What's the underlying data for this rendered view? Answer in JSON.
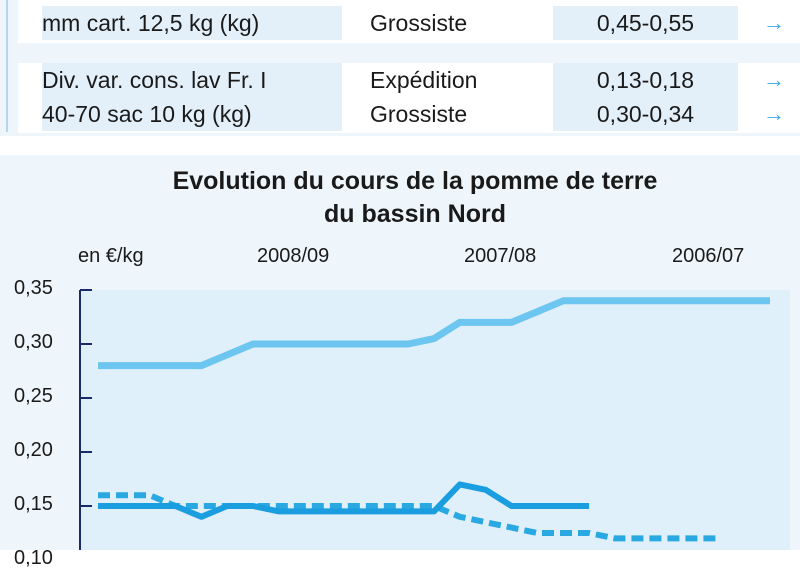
{
  "table": {
    "rows": [
      {
        "product": "mm cart. 12,5 kg (kg)",
        "stage": "Grossiste",
        "price": "0,45-0,55",
        "arrow": "→",
        "arrow_icon": "right-arrow-icon"
      },
      {
        "product": "Div. var. cons. lav Fr. I",
        "stage": "Expédition",
        "price": "0,13-0,18",
        "arrow": "→",
        "arrow_icon": "right-arrow-icon"
      },
      {
        "product": "40-70 sac 10 kg (kg)",
        "stage": "Grossiste",
        "price": "0,30-0,34",
        "arrow": "→",
        "arrow_icon": "right-arrow-icon"
      }
    ]
  },
  "colors": {
    "series_2008_09": "#1a9ee0",
    "series_2007_08": "#2aa8e2",
    "series_2006_07": "#6cc6f0",
    "plot_bg": "#dff0fb",
    "axis": "#1a2a6b",
    "panel_bg": "#eef6fc",
    "arrow": "#39a7e0"
  },
  "chart_data": {
    "type": "line",
    "title": "Evolution du cours de la pomme de terre du bassin Nord",
    "title_lines": [
      "Evolution du cours de la pomme de terre",
      "du bassin Nord"
    ],
    "ylabel": "en €/kg",
    "ylim": [
      0.1,
      0.35
    ],
    "yticks": [
      "0,35",
      "0,30",
      "0,25",
      "0,20",
      "0,15",
      "0,10"
    ],
    "ytick_values": [
      0.35,
      0.3,
      0.25,
      0.2,
      0.15,
      0.1
    ],
    "grid": false,
    "legend_position": "top",
    "x": [
      1,
      2,
      3,
      4,
      5,
      6,
      7,
      8,
      9,
      10,
      11,
      12,
      13,
      14,
      15,
      16,
      17,
      18,
      19,
      20,
      21,
      22,
      23,
      24,
      25,
      26,
      27
    ],
    "series": [
      {
        "name": "2008/09",
        "style": "solid",
        "values": [
          0.15,
          0.15,
          0.15,
          0.15,
          0.14,
          0.15,
          0.15,
          0.145,
          0.145,
          0.145,
          0.145,
          0.145,
          0.145,
          0.145,
          0.17,
          0.165,
          0.15,
          0.15,
          0.15,
          0.15,
          null,
          null,
          null,
          null,
          null,
          null,
          null
        ]
      },
      {
        "name": "2007/08",
        "style": "dashed",
        "values": [
          0.16,
          0.16,
          0.16,
          0.15,
          0.15,
          0.15,
          0.15,
          0.15,
          0.15,
          0.15,
          0.15,
          0.15,
          0.15,
          0.15,
          0.14,
          0.135,
          0.13,
          0.125,
          0.125,
          0.125,
          0.12,
          0.12,
          0.12,
          0.12,
          0.12,
          null,
          null
        ]
      },
      {
        "name": "2006/07",
        "style": "solid",
        "values": [
          0.28,
          0.28,
          0.28,
          0.28,
          0.28,
          0.29,
          0.3,
          0.3,
          0.3,
          0.3,
          0.3,
          0.3,
          0.3,
          0.305,
          0.32,
          0.32,
          0.32,
          0.33,
          0.34,
          0.34,
          0.34,
          0.34,
          0.34,
          0.34,
          0.34,
          0.34,
          0.34
        ]
      }
    ]
  }
}
